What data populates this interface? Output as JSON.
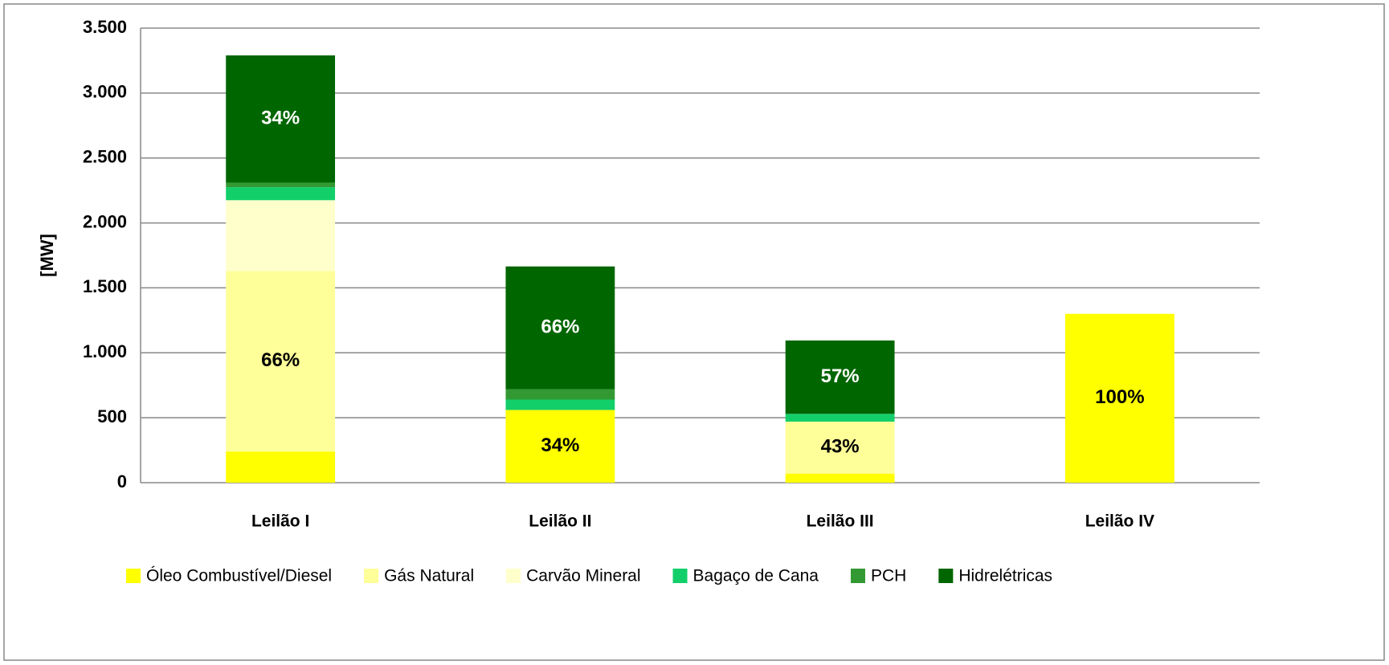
{
  "chart_data": {
    "type": "stacked_bar",
    "y_label": "[MW]",
    "categories": [
      "Leilão I",
      "Leilão II",
      "Leilão III",
      "Leilão IV"
    ],
    "series": [
      {
        "name": "Óleo Combustível/Diesel",
        "color": "#ffff00",
        "values": [
          240,
          560,
          70,
          1300
        ]
      },
      {
        "name": "Gás Natural",
        "color": "#ffff99",
        "values": [
          1390,
          0,
          400,
          0
        ]
      },
      {
        "name": "Carvão Mineral",
        "color": "#ffffcc",
        "values": [
          545,
          0,
          0,
          0
        ]
      },
      {
        "name": "Bagaço de Cana",
        "color": "#13cf6a",
        "values": [
          100,
          80,
          60,
          0
        ]
      },
      {
        "name": "PCH",
        "color": "#339933",
        "values": [
          35,
          80,
          0,
          0
        ]
      },
      {
        "name": "Hidrelétricas",
        "color": "#006600",
        "values": [
          980,
          945,
          565,
          0
        ]
      }
    ],
    "annotations": [
      {
        "text": "34%",
        "category": 0,
        "series": 5
      },
      {
        "text": "66%",
        "category": 0,
        "series": 1
      },
      {
        "text": "66%",
        "category": 1,
        "series": 5
      },
      {
        "text": "34%",
        "category": 1,
        "series": 0
      },
      {
        "text": "57%",
        "category": 2,
        "series": 5
      },
      {
        "text": "43%",
        "category": 2,
        "series": 1
      },
      {
        "text": "100%",
        "category": 3,
        "series": 0
      }
    ],
    "ylim": [
      0,
      3500
    ],
    "yticks": [
      0,
      500,
      {
        "value": 1000,
        "label": "1.000"
      },
      {
        "value": 1500,
        "label": "1.500"
      },
      {
        "value": 2000,
        "label": "2.000"
      },
      {
        "value": 2500,
        "label": "2.500"
      },
      {
        "value": 3000,
        "label": "3.000"
      },
      {
        "value": 3500,
        "label": "3.500"
      }
    ],
    "grid": true,
    "legend": "bottom"
  }
}
